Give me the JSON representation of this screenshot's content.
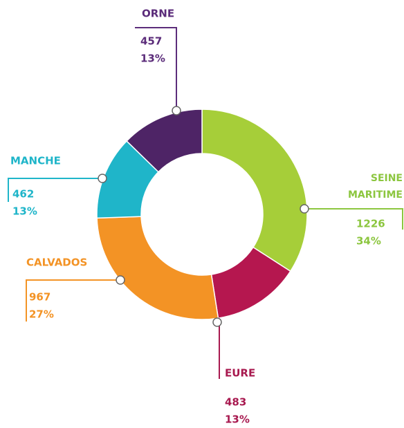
{
  "chart_data": {
    "type": "donut",
    "categories": [
      "SEINE MARITIME",
      "EURE",
      "CALVADOS",
      "MANCHE",
      "ORNE"
    ],
    "values": [
      1226,
      483,
      967,
      462,
      457
    ],
    "percent_labels": [
      "34%",
      "13%",
      "27%",
      "13%",
      "13%"
    ],
    "colors": [
      "#a6ce39",
      "#b5174f",
      "#f39325",
      "#1fb5c9",
      "#4e2466"
    ],
    "label_colors": [
      "#8cc63f",
      "#a8194f",
      "#f39325",
      "#1fb5c9",
      "#5b2c7a"
    ]
  }
}
